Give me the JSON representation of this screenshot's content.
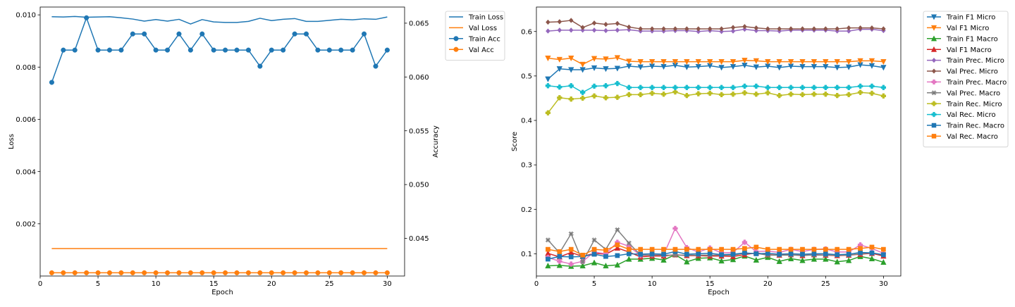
{
  "chart_data": [
    {
      "type": "line",
      "xlabel": "Epoch",
      "ylabel": "Loss",
      "y2label": "Accuracy",
      "xlim": [
        0,
        31.5
      ],
      "ylim": [
        0.0,
        0.0103
      ],
      "y2lim": [
        0.0415,
        0.0665
      ],
      "xticks": [
        0,
        5,
        10,
        15,
        20,
        25,
        30
      ],
      "yticks": [
        0.002,
        0.004,
        0.006,
        0.008,
        0.01
      ],
      "ytick_labels": [
        "0.002",
        "0.004",
        "0.006",
        "0.008",
        "0.010"
      ],
      "y2ticks": [
        0.045,
        0.05,
        0.055,
        0.06,
        0.065
      ],
      "y2tick_labels": [
        "0.045",
        "0.050",
        "0.055",
        "0.060",
        "0.065"
      ],
      "grid": false,
      "legend": "outside upper right",
      "x": [
        1,
        2,
        3,
        4,
        5,
        6,
        7,
        8,
        9,
        10,
        11,
        12,
        13,
        14,
        15,
        16,
        17,
        18,
        19,
        20,
        21,
        22,
        23,
        24,
        25,
        26,
        27,
        28,
        29,
        30
      ],
      "series": [
        {
          "name": "Train Loss",
          "axis": "left",
          "color": "#1f77b4",
          "marker": "none",
          "values": [
            0.00993,
            0.00992,
            0.00994,
            0.00991,
            0.00992,
            0.00993,
            0.00989,
            0.00984,
            0.00976,
            0.00982,
            0.00976,
            0.00983,
            0.00965,
            0.00982,
            0.00973,
            0.00971,
            0.00971,
            0.00975,
            0.00987,
            0.00978,
            0.00983,
            0.00986,
            0.00975,
            0.00975,
            0.00979,
            0.00983,
            0.00981,
            0.00985,
            0.00983,
            0.00992
          ]
        },
        {
          "name": "Val Loss",
          "axis": "left",
          "color": "#ff7f0e",
          "marker": "none",
          "values": [
            0.00105,
            0.00105,
            0.00105,
            0.00105,
            0.00105,
            0.00105,
            0.00105,
            0.00105,
            0.00105,
            0.00105,
            0.00105,
            0.00105,
            0.00105,
            0.00105,
            0.00105,
            0.00105,
            0.00105,
            0.00105,
            0.00105,
            0.00105,
            0.00105,
            0.00105,
            0.00105,
            0.00105,
            0.00105,
            0.00105,
            0.00105,
            0.00105,
            0.00105,
            0.00105
          ]
        },
        {
          "name": "Train Acc",
          "axis": "right",
          "color": "#1f77b4",
          "marker": "o",
          "values": [
            0.0595,
            0.0625,
            0.0625,
            0.0655,
            0.0625,
            0.0625,
            0.0625,
            0.064,
            0.064,
            0.0625,
            0.0625,
            0.064,
            0.0625,
            0.064,
            0.0625,
            0.0625,
            0.0625,
            0.0625,
            0.061,
            0.0625,
            0.0625,
            0.064,
            0.064,
            0.0625,
            0.0625,
            0.0625,
            0.0625,
            0.064,
            0.061,
            0.0625
          ]
        },
        {
          "name": "Val Acc",
          "axis": "right",
          "color": "#ff7f0e",
          "marker": "o",
          "values": [
            0.0418,
            0.0418,
            0.0418,
            0.0418,
            0.0418,
            0.0418,
            0.0418,
            0.0418,
            0.0418,
            0.0418,
            0.0418,
            0.0418,
            0.0418,
            0.0418,
            0.0418,
            0.0418,
            0.0418,
            0.0418,
            0.0418,
            0.0418,
            0.0418,
            0.0418,
            0.0418,
            0.0418,
            0.0418,
            0.0418,
            0.0418,
            0.0418,
            0.0418,
            0.0418
          ]
        }
      ]
    },
    {
      "type": "line",
      "xlabel": "Epoch",
      "ylabel": "Score",
      "xlim": [
        0,
        31.5
      ],
      "ylim": [
        0.05,
        0.655
      ],
      "xticks": [
        0,
        5,
        10,
        15,
        20,
        25,
        30
      ],
      "yticks": [
        0.1,
        0.2,
        0.3,
        0.4,
        0.5,
        0.6
      ],
      "ytick_labels": [
        "0.1",
        "0.2",
        "0.3",
        "0.4",
        "0.5",
        "0.6"
      ],
      "grid": false,
      "legend": "outside upper right",
      "x": [
        1,
        2,
        3,
        4,
        5,
        6,
        7,
        8,
        9,
        10,
        11,
        12,
        13,
        14,
        15,
        16,
        17,
        18,
        19,
        20,
        21,
        22,
        23,
        24,
        25,
        26,
        27,
        28,
        29,
        30
      ],
      "series": [
        {
          "name": "Train F1 Micro",
          "color": "#1f77b4",
          "marker": "v",
          "values": [
            0.493,
            0.516,
            0.514,
            0.514,
            0.518,
            0.516,
            0.517,
            0.522,
            0.52,
            0.522,
            0.521,
            0.524,
            0.52,
            0.521,
            0.523,
            0.519,
            0.521,
            0.524,
            0.52,
            0.522,
            0.519,
            0.522,
            0.521,
            0.521,
            0.521,
            0.519,
            0.52,
            0.525,
            0.523,
            0.519
          ]
        },
        {
          "name": "Val F1 Micro",
          "color": "#ff7f0e",
          "marker": "v",
          "values": [
            0.54,
            0.537,
            0.54,
            0.526,
            0.539,
            0.538,
            0.541,
            0.533,
            0.532,
            0.532,
            0.532,
            0.532,
            0.532,
            0.532,
            0.532,
            0.532,
            0.532,
            0.535,
            0.534,
            0.532,
            0.532,
            0.532,
            0.532,
            0.532,
            0.532,
            0.532,
            0.532,
            0.534,
            0.534,
            0.532
          ]
        },
        {
          "name": "Train F1 Macro",
          "color": "#2ca02c",
          "marker": "^",
          "values": [
            0.073,
            0.074,
            0.072,
            0.073,
            0.08,
            0.073,
            0.075,
            0.088,
            0.088,
            0.09,
            0.086,
            0.098,
            0.082,
            0.09,
            0.091,
            0.084,
            0.087,
            0.095,
            0.086,
            0.092,
            0.083,
            0.089,
            0.085,
            0.088,
            0.088,
            0.082,
            0.085,
            0.094,
            0.089,
            0.081
          ]
        },
        {
          "name": "Val F1 Macro",
          "color": "#d62728",
          "marker": "^",
          "values": [
            0.101,
            0.093,
            0.103,
            0.094,
            0.101,
            0.099,
            0.113,
            0.104,
            0.093,
            0.095,
            0.095,
            0.098,
            0.096,
            0.096,
            0.095,
            0.095,
            0.094,
            0.098,
            0.102,
            0.098,
            0.097,
            0.098,
            0.096,
            0.098,
            0.097,
            0.096,
            0.097,
            0.099,
            0.101,
            0.095
          ]
        },
        {
          "name": "Train Prec. Micro",
          "color": "#9467bd",
          "marker": "D",
          "values": [
            0.601,
            0.603,
            0.603,
            0.603,
            0.603,
            0.602,
            0.603,
            0.604,
            0.601,
            0.601,
            0.601,
            0.602,
            0.602,
            0.6,
            0.602,
            0.6,
            0.601,
            0.605,
            0.602,
            0.602,
            0.601,
            0.603,
            0.603,
            0.603,
            0.603,
            0.601,
            0.601,
            0.605,
            0.605,
            0.602
          ]
        },
        {
          "name": "Val Prec. Micro",
          "color": "#8c564b",
          "marker": "D",
          "values": [
            0.621,
            0.622,
            0.625,
            0.609,
            0.619,
            0.616,
            0.618,
            0.61,
            0.606,
            0.606,
            0.606,
            0.606,
            0.606,
            0.606,
            0.606,
            0.606,
            0.609,
            0.611,
            0.608,
            0.606,
            0.606,
            0.606,
            0.606,
            0.606,
            0.606,
            0.606,
            0.608,
            0.608,
            0.608,
            0.606
          ]
        },
        {
          "name": "Train Prec. Macro",
          "color": "#e377c2",
          "marker": "P",
          "values": [
            0.092,
            0.083,
            0.077,
            0.083,
            0.104,
            0.1,
            0.126,
            0.117,
            0.096,
            0.098,
            0.098,
            0.157,
            0.114,
            0.104,
            0.113,
            0.102,
            0.103,
            0.126,
            0.105,
            0.106,
            0.103,
            0.11,
            0.105,
            0.11,
            0.111,
            0.104,
            0.104,
            0.12,
            0.112,
            0.101
          ]
        },
        {
          "name": "Val Prec. Macro",
          "color": "#7f7f7f",
          "marker": "X",
          "values": [
            0.131,
            0.102,
            0.145,
            0.082,
            0.131,
            0.11,
            0.154,
            0.124,
            0.097,
            0.097,
            0.097,
            0.097,
            0.097,
            0.097,
            0.097,
            0.097,
            0.097,
            0.101,
            0.101,
            0.097,
            0.097,
            0.097,
            0.097,
            0.097,
            0.097,
            0.097,
            0.097,
            0.1,
            0.102,
            0.097
          ]
        },
        {
          "name": "Train Rec. Micro",
          "color": "#bcbd22",
          "marker": "P",
          "values": [
            0.417,
            0.451,
            0.448,
            0.45,
            0.455,
            0.451,
            0.452,
            0.458,
            0.458,
            0.461,
            0.459,
            0.464,
            0.456,
            0.46,
            0.461,
            0.458,
            0.459,
            0.462,
            0.459,
            0.462,
            0.456,
            0.459,
            0.458,
            0.459,
            0.459,
            0.456,
            0.458,
            0.463,
            0.461,
            0.455
          ]
        },
        {
          "name": "Val Rec. Micro",
          "color": "#17becf",
          "marker": "P",
          "values": [
            0.478,
            0.475,
            0.478,
            0.463,
            0.477,
            0.478,
            0.483,
            0.474,
            0.474,
            0.474,
            0.474,
            0.474,
            0.474,
            0.474,
            0.474,
            0.474,
            0.474,
            0.477,
            0.477,
            0.474,
            0.474,
            0.474,
            0.474,
            0.474,
            0.474,
            0.474,
            0.474,
            0.477,
            0.477,
            0.474
          ]
        },
        {
          "name": "Train Rec. Macro",
          "color": "#1f77b4",
          "marker": "s",
          "values": [
            0.088,
            0.094,
            0.093,
            0.094,
            0.099,
            0.094,
            0.096,
            0.1,
            0.099,
            0.1,
            0.099,
            0.105,
            0.099,
            0.1,
            0.101,
            0.098,
            0.099,
            0.102,
            0.1,
            0.101,
            0.099,
            0.1,
            0.099,
            0.1,
            0.1,
            0.098,
            0.099,
            0.103,
            0.102,
            0.098
          ]
        },
        {
          "name": "Val Rec. Macro",
          "color": "#ff7f0e",
          "marker": "s",
          "values": [
            0.11,
            0.105,
            0.11,
            0.097,
            0.11,
            0.108,
            0.12,
            0.11,
            0.11,
            0.11,
            0.11,
            0.11,
            0.11,
            0.11,
            0.11,
            0.11,
            0.11,
            0.112,
            0.115,
            0.11,
            0.11,
            0.11,
            0.11,
            0.11,
            0.11,
            0.11,
            0.11,
            0.112,
            0.115,
            0.11
          ]
        }
      ]
    }
  ]
}
